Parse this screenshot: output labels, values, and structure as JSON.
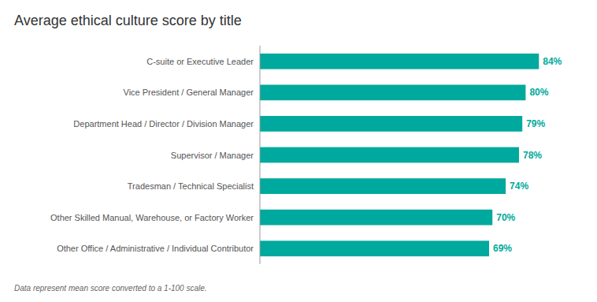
{
  "chart_data": {
    "type": "bar",
    "orientation": "horizontal",
    "title": "Average ethical culture score by title",
    "categories": [
      "C-suite or Executive Leader",
      "Vice President / General Manager",
      "Department Head / Director / Division Manager",
      "Supervisor / Manager",
      "Tradesman / Technical Specialist",
      "Other Skilled Manual, Warehouse, or Factory Worker",
      "Other Office / Administrative / Individual Contributor"
    ],
    "values": [
      84,
      80,
      79,
      78,
      74,
      70,
      69
    ],
    "value_labels": [
      "84%",
      "80%",
      "79%",
      "78%",
      "74%",
      "70%",
      "69%"
    ],
    "color": "#00a99d",
    "xlim": [
      0,
      92
    ],
    "data_labels": true,
    "tick_labels": false,
    "grid": false,
    "annotations": [
      "Data represent mean score converted to a 1-100 scale."
    ]
  }
}
